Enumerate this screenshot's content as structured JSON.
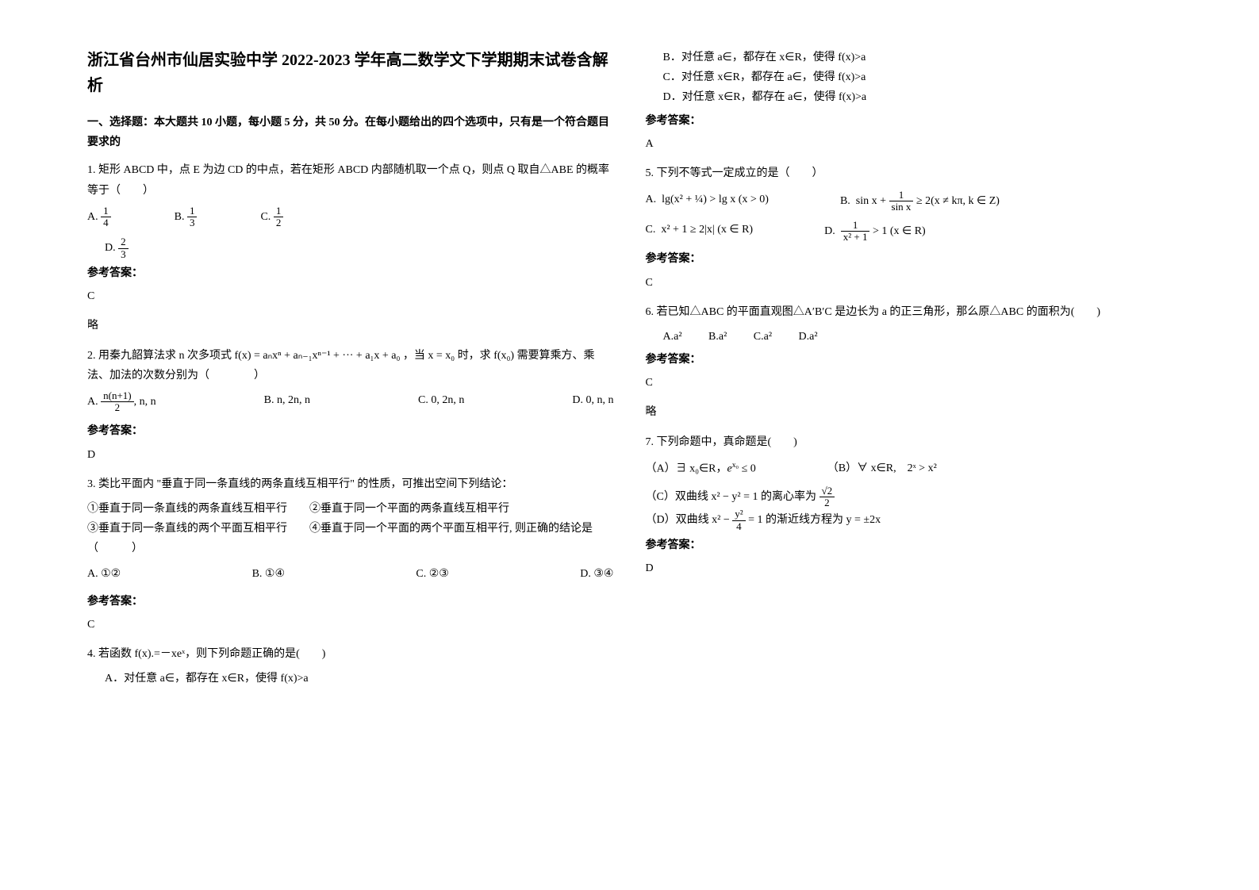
{
  "title": "浙江省台州市仙居实验中学 2022-2023 学年高二数学文下学期期末试卷含解析",
  "section1": "一、选择题：本大题共 10 小题，每小题 5 分，共 50 分。在每小题给出的四个选项中，只有是一个符合题目要求的",
  "q1": {
    "text": "1. 矩形 ABCD 中，点 E 为边 CD 的中点，若在矩形 ABCD 内部随机取一个点 Q，则点 Q 取自△ABE 的概率等于（　　）",
    "a_label": "A.",
    "a_num": "1",
    "a_den": "4",
    "b_label": "B.",
    "b_num": "1",
    "b_den": "3",
    "c_label": "C.",
    "c_num": "1",
    "c_den": "2",
    "d_label": "D.",
    "d_num": "2",
    "d_den": "3",
    "ans_label": "参考答案：",
    "ans": "C",
    "extra": "略"
  },
  "q2": {
    "text_pre": "2. 用秦九韶算法求 n 次多项式",
    "formula": "f(x) = aₙxⁿ + aₙ₋₁xⁿ⁻¹ + ··· + a₁x + a₀",
    "text_mid": "，当",
    "cond": "x = x₀",
    "text_post": "时，求",
    "target": "f(x₀)",
    "tail": "需要算乘方、乘法、加法的次数分别为（　　　　）",
    "a_label": "A.",
    "a_num": "n(n+1)",
    "a_den": "2",
    "a_tail": ", n, n",
    "b": "B.   n, 2n, n",
    "c": "C.    0, 2n, n",
    "d": "D.    0, n, n",
    "ans_label": "参考答案：",
    "ans": "D"
  },
  "q3": {
    "text": "3. 类比平面内 \"垂直于同一条直线的两条直线互相平行\" 的性质，可推出空间下列结论：",
    "p1": "①垂直于同一条直线的两条直线互相平行　　②垂直于同一个平面的两条直线互相平行",
    "p2": "③垂直于同一条直线的两个平面互相平行　　④垂直于同一个平面的两个平面互相平行, 则正确的结论是（　　　）",
    "a": "A.  ①②",
    "b": "B.  ①④",
    "c": "C.  ②③",
    "d": "D.  ③④",
    "ans_label": "参考答案：",
    "ans": "C"
  },
  "q4": {
    "text": "4. 若函数 f(x).=－xeˣ，则下列命题正确的是(　　)",
    "a": "A．对任意 a∈，都存在 x∈R，使得 f(x)>a",
    "b": "B．对任意 a∈，都存在 x∈R，使得 f(x)>a",
    "c": "C．对任意 x∈R，都存在 a∈，使得 f(x)>a",
    "d": "D．对任意 x∈R，都存在 a∈，使得 f(x)>a",
    "ans_label": "参考答案：",
    "ans": "A"
  },
  "q5": {
    "text": "5. 下列不等式一定成立的是（　　）",
    "a_label": "A.",
    "a_formula": "lg(x² + ¼) > lg x (x > 0)",
    "b_label": "B.",
    "b_pre": "sin x + ",
    "b_num": "1",
    "b_den": "sin x",
    "b_tail": " ≥ 2(x ≠ kπ, k ∈ Z)",
    "c_label": "C.",
    "c_formula": "x² + 1 ≥ 2|x| (x ∈ R)",
    "d_label": "D.",
    "d_num": "1",
    "d_den": "x² + 1",
    "d_tail": " > 1 (x ∈ R)",
    "ans_label": "参考答案：",
    "ans": "C"
  },
  "q6": {
    "text": "6. 若已知△ABC 的平面直观图△A′B′C 是边长为 a 的正三角形，那么原△ABC 的面积为(　　)",
    "a": "A.a²",
    "b": "B.a²",
    "c": "C.a²",
    "d": "D.a²",
    "ans_label": "参考答案：",
    "ans": "C",
    "extra": "略"
  },
  "q7": {
    "text": "7. 下列命题中，真命题是(　　)",
    "a_pre": "（A）∃ x₀∈R，",
    "a_mid": "e",
    "a_sup": "x₀",
    "a_tail": " ≤ 0",
    "b": "（B）∀ x∈R,　2ˣ > x²",
    "c_pre": "（C）双曲线",
    "c_formula": "x² − y² = 1",
    "c_mid": "的离心率为",
    "c_num": "√2",
    "c_den": "2",
    "d_pre": "（D）双曲线",
    "d_formula_pre": "x² − ",
    "d_num": "y²",
    "d_den": "4",
    "d_formula_post": " = 1",
    "d_mid": "的渐近线方程为",
    "d_tail": "y = ±2x",
    "ans_label": "参考答案：",
    "ans": "D"
  }
}
